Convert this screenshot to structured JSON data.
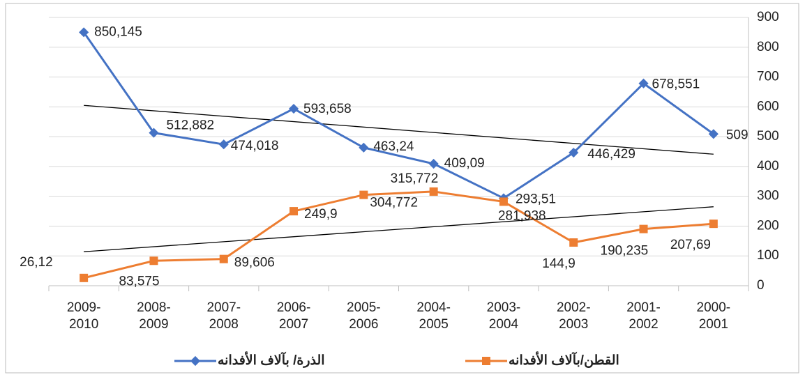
{
  "chart_data": {
    "type": "line",
    "categories": [
      "2009-2010",
      "2008-2009",
      "2007-2008",
      "2006-2007",
      "2005-2006",
      "2004-2005",
      "2003-2004",
      "2002-2003",
      "2001-2002",
      "2000-2001"
    ],
    "series": [
      {
        "name": "الذرة/ بآلاف الأفدانه",
        "color": "#4472c4",
        "values": [
          850.145,
          512.882,
          474.018,
          593.658,
          463.24,
          409.09,
          293.51,
          446.429,
          678.551,
          509
        ],
        "value_labels": [
          "850,145",
          "512,882",
          "474,018",
          "593,658",
          "463,24",
          "409,09",
          "293,51",
          "446,429",
          "678,551",
          "509"
        ]
      },
      {
        "name": "القطن/بآلاف الأفدانه",
        "color": "#ed7d31",
        "values": [
          26.12,
          83.575,
          89.606,
          249.9,
          304.772,
          315.772,
          281.938,
          144.9,
          190.235,
          207.69
        ],
        "value_labels": [
          "26,12",
          "83,575",
          "89,606",
          "249,9",
          "304,772",
          "315,772",
          "281,938",
          "144,9",
          "190,235",
          "207,69"
        ]
      }
    ],
    "ylim": [
      0,
      900
    ],
    "yticks": [
      0,
      100,
      200,
      300,
      400,
      500,
      600,
      700,
      800,
      900
    ],
    "grid": true,
    "trendline": true,
    "y_axis_side": "right",
    "legend": "bottom"
  }
}
